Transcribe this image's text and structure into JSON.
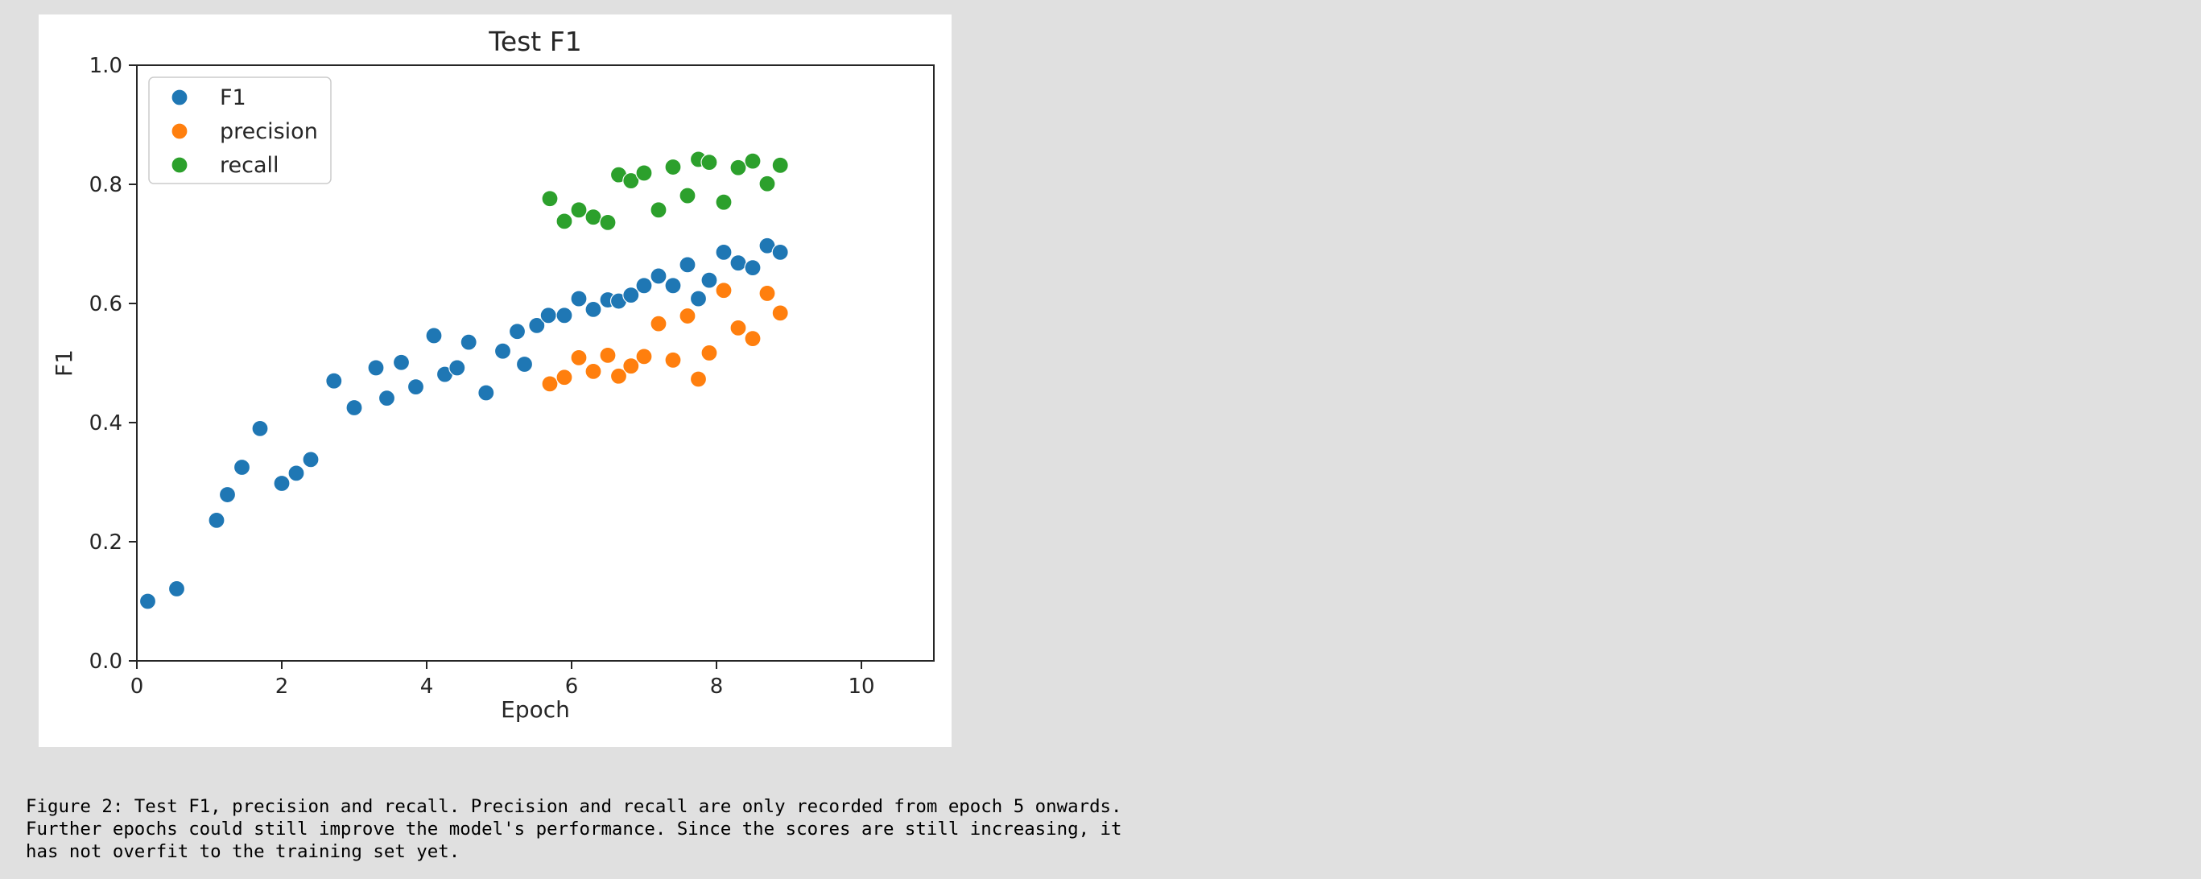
{
  "chart_data": {
    "type": "scatter",
    "title": "Test F1",
    "xlabel": "Epoch",
    "ylabel": "F1",
    "xlim": [
      0,
      11
    ],
    "ylim": [
      0,
      1
    ],
    "xticks": [
      0,
      2,
      4,
      6,
      8,
      10
    ],
    "xtick_labels": [
      "0",
      "2",
      "4",
      "6",
      "8",
      "10"
    ],
    "yticks": [
      0,
      0.2,
      0.4,
      0.6,
      0.8,
      1
    ],
    "ytick_labels": [
      "0.0",
      "0.2",
      "0.4",
      "0.6",
      "0.8",
      "1.0"
    ],
    "grid": false,
    "legend_position": "top-left",
    "series": [
      {
        "name": "F1",
        "color": "#1f77b4",
        "points": [
          [
            0.15,
            0.1
          ],
          [
            0.55,
            0.121
          ],
          [
            1.1,
            0.236
          ],
          [
            1.25,
            0.279
          ],
          [
            1.45,
            0.325
          ],
          [
            1.7,
            0.39
          ],
          [
            2.0,
            0.298
          ],
          [
            2.2,
            0.315
          ],
          [
            2.4,
            0.338
          ],
          [
            2.72,
            0.47
          ],
          [
            3.0,
            0.425
          ],
          [
            3.3,
            0.492
          ],
          [
            3.45,
            0.441
          ],
          [
            3.65,
            0.501
          ],
          [
            3.85,
            0.46
          ],
          [
            4.1,
            0.546
          ],
          [
            4.25,
            0.481
          ],
          [
            4.42,
            0.492
          ],
          [
            4.58,
            0.535
          ],
          [
            4.82,
            0.45
          ],
          [
            5.05,
            0.52
          ],
          [
            5.25,
            0.553
          ],
          [
            5.35,
            0.498
          ],
          [
            5.52,
            0.563
          ],
          [
            5.68,
            0.58
          ],
          [
            5.9,
            0.58
          ],
          [
            6.1,
            0.608
          ],
          [
            6.3,
            0.59
          ],
          [
            6.5,
            0.606
          ],
          [
            6.65,
            0.604
          ],
          [
            6.82,
            0.614
          ],
          [
            7.0,
            0.63
          ],
          [
            7.2,
            0.646
          ],
          [
            7.4,
            0.63
          ],
          [
            7.6,
            0.665
          ],
          [
            7.75,
            0.608
          ],
          [
            7.9,
            0.639
          ],
          [
            8.1,
            0.686
          ],
          [
            8.3,
            0.668
          ],
          [
            8.5,
            0.66
          ],
          [
            8.7,
            0.697
          ],
          [
            8.88,
            0.686
          ]
        ]
      },
      {
        "name": "precision",
        "color": "#ff7f0e",
        "points": [
          [
            5.7,
            0.465
          ],
          [
            5.9,
            0.476
          ],
          [
            6.1,
            0.509
          ],
          [
            6.3,
            0.486
          ],
          [
            6.5,
            0.513
          ],
          [
            6.65,
            0.478
          ],
          [
            6.82,
            0.495
          ],
          [
            7.0,
            0.511
          ],
          [
            7.2,
            0.566
          ],
          [
            7.4,
            0.505
          ],
          [
            7.6,
            0.579
          ],
          [
            7.75,
            0.473
          ],
          [
            7.9,
            0.517
          ],
          [
            8.1,
            0.622
          ],
          [
            8.3,
            0.559
          ],
          [
            8.5,
            0.541
          ],
          [
            8.7,
            0.617
          ],
          [
            8.88,
            0.584
          ]
        ]
      },
      {
        "name": "recall",
        "color": "#2ca02c",
        "points": [
          [
            5.7,
            0.776
          ],
          [
            5.9,
            0.738
          ],
          [
            6.1,
            0.757
          ],
          [
            6.3,
            0.745
          ],
          [
            6.5,
            0.736
          ],
          [
            6.65,
            0.816
          ],
          [
            6.82,
            0.806
          ],
          [
            7.0,
            0.819
          ],
          [
            7.2,
            0.757
          ],
          [
            7.4,
            0.829
          ],
          [
            7.6,
            0.781
          ],
          [
            7.75,
            0.842
          ],
          [
            7.9,
            0.837
          ],
          [
            8.1,
            0.77
          ],
          [
            8.3,
            0.828
          ],
          [
            8.5,
            0.839
          ],
          [
            8.7,
            0.801
          ],
          [
            8.88,
            0.832
          ]
        ]
      }
    ]
  },
  "caption": "Figure 2: Test F1, precision and recall. Precision and recall are only recorded from epoch 5 onwards. Further epochs could still improve the model's performance. Since the scores are still increasing, it has not overfit to the training set yet.",
  "caption_lines": [
    "Figure 2: Test F1, precision and recall. Precision and recall are only recorded from epoch 5 onwards.",
    "Further epochs could still improve the model's performance. Since the scores are still increasing, it",
    "has not overfit to the training set yet."
  ]
}
